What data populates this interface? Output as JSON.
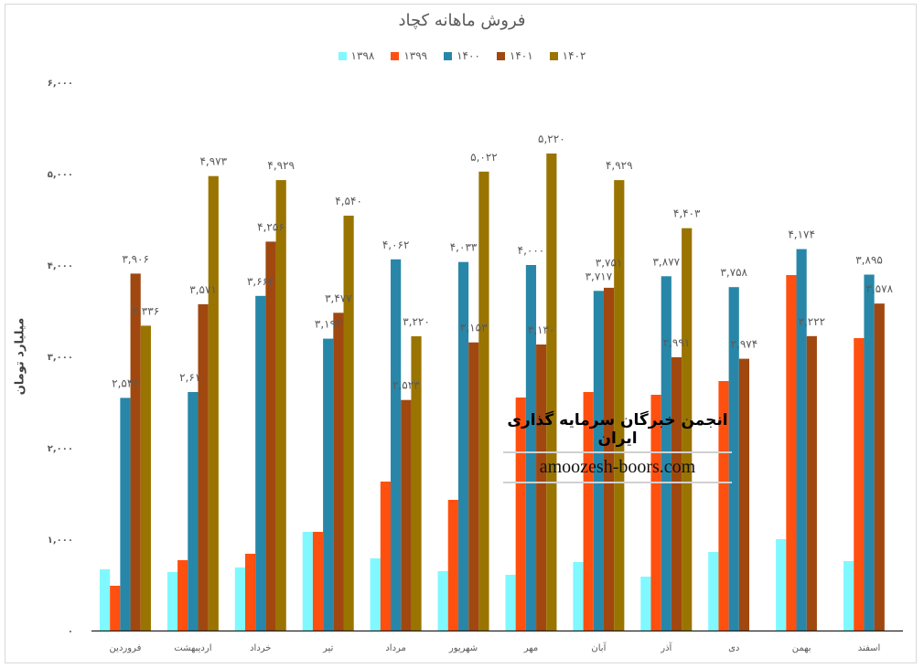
{
  "chart_data": {
    "type": "bar",
    "title": "فروش ماهانه کچاد",
    "xlabel": "",
    "ylabel": "میلیارد تومان",
    "ylim": [
      0,
      6000
    ],
    "yticks": [
      "۰",
      "۱,۰۰۰",
      "۲,۰۰۰",
      "۳,۰۰۰",
      "۴,۰۰۰",
      "۵,۰۰۰",
      "۶,۰۰۰"
    ],
    "ytick_values": [
      0,
      1000,
      2000,
      3000,
      4000,
      5000,
      6000
    ],
    "grid": false,
    "legend_position": "top",
    "categories": [
      "فروردین",
      "اردیبهشت",
      "خرداد",
      "تیر",
      "مرداد",
      "شهریور",
      "مهر",
      "آبان",
      "آذر",
      "دی",
      "بهمن",
      "اسفند"
    ],
    "series": [
      {
        "name": "۱۳۹۸",
        "color": "#7ff9ff",
        "show_labels": false,
        "values": [
          670,
          640,
          690,
          1080,
          790,
          650,
          610,
          750,
          590,
          860,
          1000,
          760
        ]
      },
      {
        "name": "۱۳۹۹",
        "color": "#ff5010",
        "show_labels": false,
        "values": [
          490,
          770,
          840,
          1080,
          1630,
          1430,
          2550,
          2610,
          2580,
          2730,
          3890,
          3200
        ]
      },
      {
        "name": "۱۴۰۰",
        "color": "#2887a8",
        "show_labels": true,
        "values": [
          2546,
          2610,
          3662,
          3194,
          4062,
          4033,
          4000,
          3717,
          3877,
          3758,
          4174,
          3895
        ]
      },
      {
        "name": "۱۴۰۱",
        "color": "#a04810",
        "show_labels": true,
        "values": [
          3906,
          3571,
          4256,
          3477,
          2523,
          3153,
          3130,
          3751,
          2991,
          2974,
          3222,
          3578
        ]
      },
      {
        "name": "۱۴۰۲",
        "color": "#9a7400",
        "show_labels": true,
        "values": [
          3336,
          4973,
          4929,
          4540,
          3220,
          5022,
          5220,
          4929,
          4403,
          null,
          null,
          null
        ]
      }
    ]
  },
  "watermark": {
    "line1": "انجمن خبرگان سرمایه گذاری ایران",
    "line2": "amoozesh-boors.com"
  }
}
